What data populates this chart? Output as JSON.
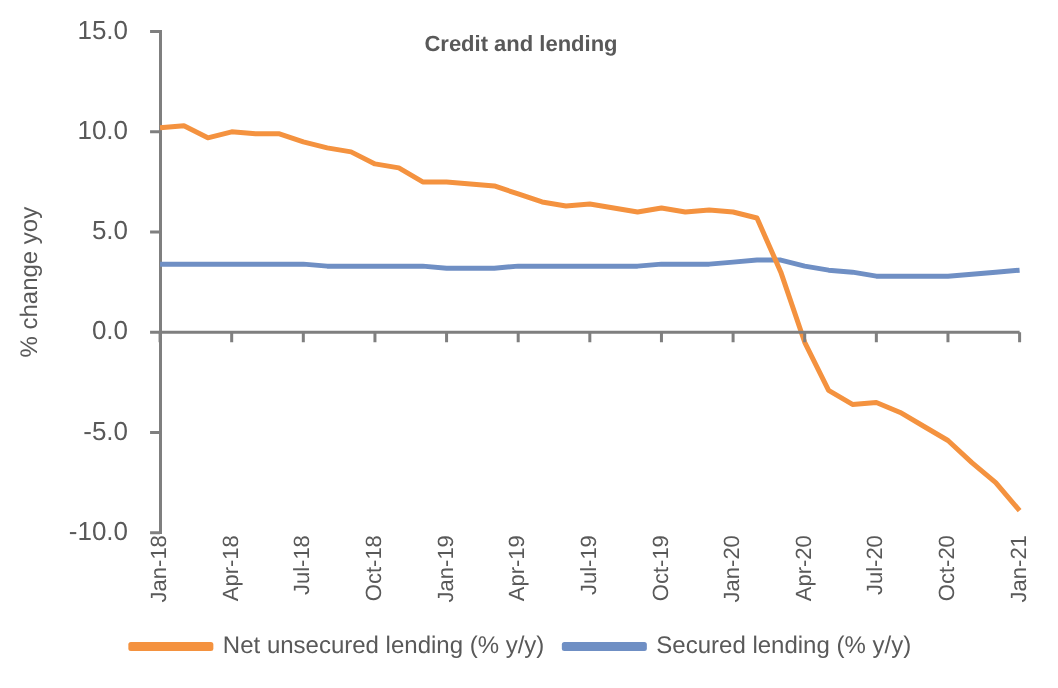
{
  "chart_data": {
    "type": "line",
    "title": "Credit and lending",
    "ylabel": "% change yoy",
    "categories": [
      "Jan-18",
      null,
      null,
      "Apr-18",
      null,
      null,
      "Jul-18",
      null,
      null,
      "Oct-18",
      null,
      null,
      "Jan-19",
      null,
      null,
      "Apr-19",
      null,
      null,
      "Jul-19",
      null,
      null,
      "Oct-19",
      null,
      null,
      "Jan-20",
      null,
      null,
      "Apr-20",
      null,
      null,
      "Jul-20",
      null,
      null,
      "Oct-20",
      null,
      null,
      "Jan-21"
    ],
    "series": [
      {
        "name": "Net unsecured lending (% y/y)",
        "color": "#f4923f",
        "values": [
          10.2,
          10.3,
          9.7,
          10.0,
          9.9,
          9.9,
          9.5,
          9.2,
          9.0,
          8.4,
          8.2,
          7.5,
          7.5,
          7.4,
          7.3,
          6.9,
          6.5,
          6.3,
          6.4,
          6.2,
          6.0,
          6.2,
          6.0,
          6.1,
          6.0,
          5.7,
          3.0,
          -0.5,
          -2.9,
          -3.6,
          -3.5,
          -4.0,
          -4.7,
          -5.4,
          -6.5,
          -7.5,
          -8.9
        ]
      },
      {
        "name": "Secured lending (% y/y)",
        "color": "#6f8fc4",
        "values": [
          3.4,
          3.4,
          3.4,
          3.4,
          3.4,
          3.4,
          3.4,
          3.3,
          3.3,
          3.3,
          3.3,
          3.3,
          3.2,
          3.2,
          3.2,
          3.3,
          3.3,
          3.3,
          3.3,
          3.3,
          3.3,
          3.4,
          3.4,
          3.4,
          3.5,
          3.6,
          3.6,
          3.3,
          3.1,
          3.0,
          2.8,
          2.8,
          2.8,
          2.8,
          2.9,
          3.0,
          3.1
        ]
      }
    ],
    "ylim": [
      -10,
      15
    ],
    "yticks": [
      {
        "value": -10,
        "label": "-10.0"
      },
      {
        "value": -5,
        "label": "-5.0"
      },
      {
        "value": 0,
        "label": "0.0"
      },
      {
        "value": 5,
        "label": "5.0"
      },
      {
        "value": 10,
        "label": "10.0"
      },
      {
        "value": 15,
        "label": "15.0"
      }
    ],
    "legend": "bottom",
    "marker": "none",
    "line_style": "solid"
  }
}
